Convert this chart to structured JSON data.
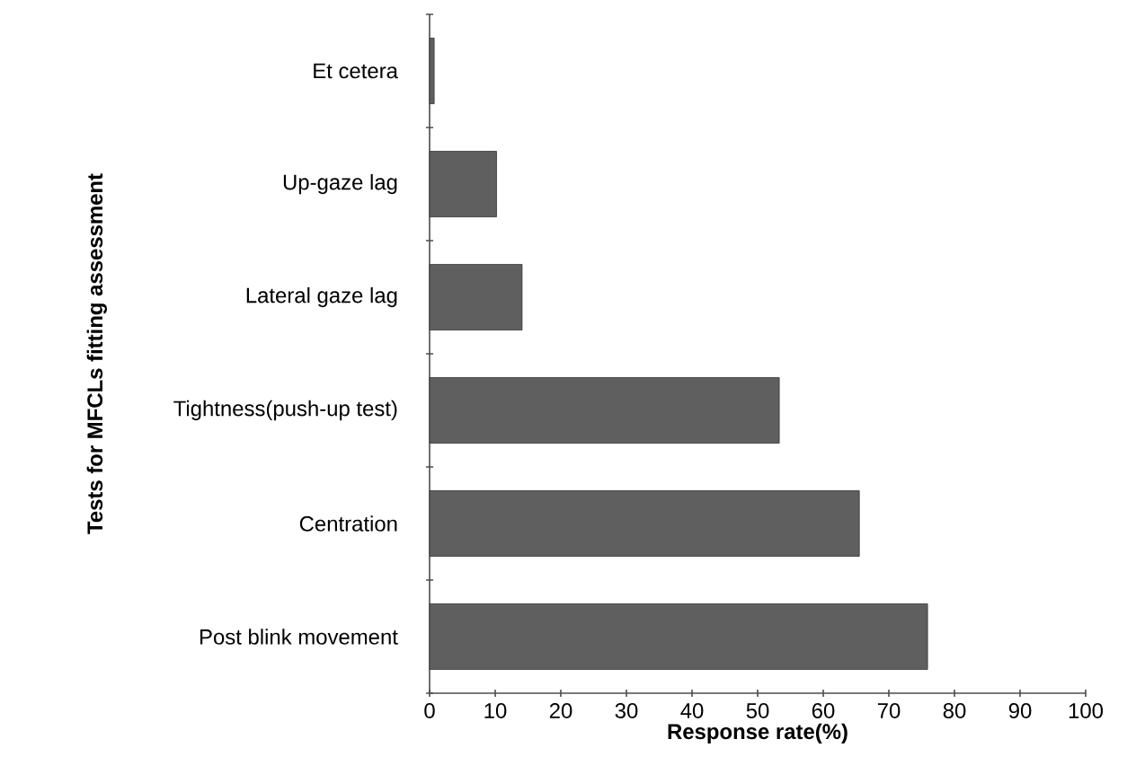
{
  "chart_data": {
    "type": "bar",
    "orientation": "horizontal",
    "xlabel": "Response rate(%)",
    "ylabel": "Tests for MFCLs fitting assessment",
    "categories": [
      "Et cetera",
      "Up-gaze lag",
      "Lateral gaze lag",
      "Tightness(push-up test)",
      "Centration",
      "Post blink movement"
    ],
    "values": [
      0.7,
      10.2,
      14.1,
      53.3,
      65.5,
      75.9
    ],
    "color": "#5f5f5f",
    "xlim": [
      0,
      100
    ],
    "xticks": [
      0,
      10,
      20,
      30,
      40,
      50,
      60,
      70,
      80,
      90,
      100
    ],
    "grid": false
  }
}
